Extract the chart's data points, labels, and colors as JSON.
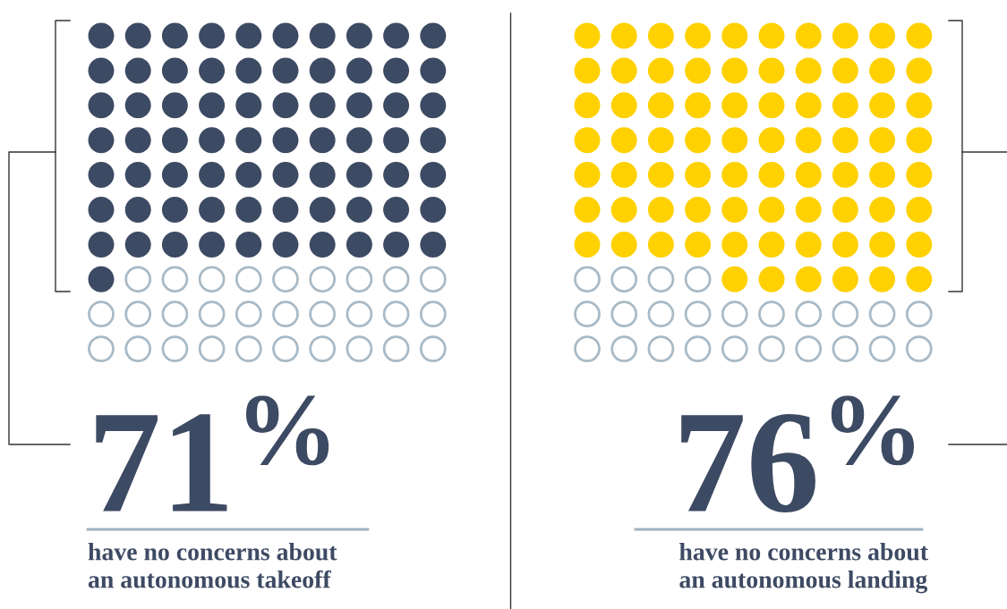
{
  "chart_data": [
    {
      "type": "other",
      "values": [
        71
      ],
      "value_labels": [
        "71%"
      ],
      "color": "#3d4a63",
      "annotations": [
        "have no concerns about\nan autonomous takeoff"
      ]
    },
    {
      "type": "other",
      "values": [
        76
      ],
      "value_labels": [
        "76%"
      ],
      "color": "#ffd100",
      "annotations": [
        "have no concerns about\nan autonomous landing"
      ]
    }
  ]
}
